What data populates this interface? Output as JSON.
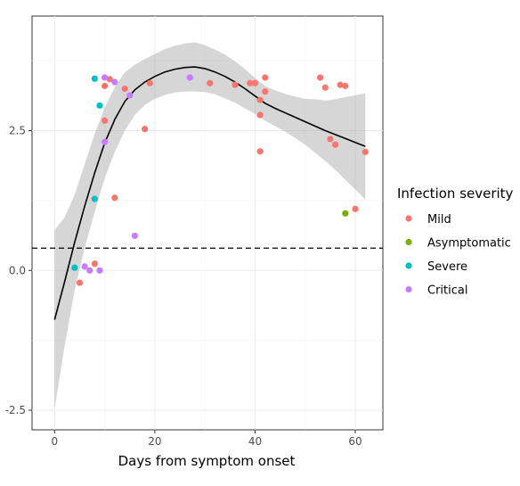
{
  "chart_data": {
    "type": "scatter",
    "title": "",
    "xlabel": "Days from symptom onset",
    "ylabel": "",
    "xlim": [
      -4.5,
      65.5
    ],
    "ylim": [
      -2.85,
      4.55
    ],
    "x_ticks": [
      0,
      20,
      40,
      60
    ],
    "y_ticks": [
      -2.5,
      0.0,
      2.5
    ],
    "x_tick_labels": [
      "0",
      "20",
      "40",
      "60"
    ],
    "y_tick_labels": [
      "-2.5",
      "0.0",
      "2.5"
    ],
    "grid": true,
    "legend_title": "Infection severity",
    "legend_position": "right",
    "reference_line": {
      "y": 0.4,
      "style": "dashed"
    },
    "series": [
      {
        "name": "Mild",
        "color": "#F8766D",
        "points": [
          [
            5,
            -0.22
          ],
          [
            8,
            0.12
          ],
          [
            12,
            1.3
          ],
          [
            10,
            2.68
          ],
          [
            10,
            3.3
          ],
          [
            11,
            3.42
          ],
          [
            14,
            3.25
          ],
          [
            18,
            2.53
          ],
          [
            19,
            3.35
          ],
          [
            31,
            3.35
          ],
          [
            36,
            3.32
          ],
          [
            39,
            3.35
          ],
          [
            40,
            3.35
          ],
          [
            41,
            3.05
          ],
          [
            41,
            2.78
          ],
          [
            41,
            2.13
          ],
          [
            42,
            3.45
          ],
          [
            42,
            3.2
          ],
          [
            53,
            3.45
          ],
          [
            54,
            3.27
          ],
          [
            55,
            2.35
          ],
          [
            56,
            2.25
          ],
          [
            57,
            3.32
          ],
          [
            58,
            3.3
          ],
          [
            60,
            1.1
          ],
          [
            62,
            2.12
          ]
        ]
      },
      {
        "name": "Asymptomatic",
        "color": "#7CAE00",
        "points": [
          [
            58,
            1.02
          ]
        ]
      },
      {
        "name": "Severe",
        "color": "#00BFC4",
        "points": [
          [
            4,
            0.05
          ],
          [
            8,
            1.28
          ],
          [
            8,
            3.43
          ],
          [
            9,
            2.95
          ]
        ]
      },
      {
        "name": "Critical",
        "color": "#C77CFF",
        "points": [
          [
            6,
            0.07
          ],
          [
            7,
            0.0
          ],
          [
            9,
            0.0
          ],
          [
            10,
            2.3
          ],
          [
            10,
            3.45
          ],
          [
            12,
            3.37
          ],
          [
            15,
            3.13
          ],
          [
            16,
            0.62
          ],
          [
            27,
            3.45
          ]
        ]
      }
    ],
    "smooth": {
      "color": "#000000",
      "band_color": "#999999",
      "x": [
        0,
        2,
        4,
        6,
        8,
        10,
        12,
        14,
        16,
        18,
        20,
        22,
        24,
        26,
        28,
        30,
        32,
        34,
        36,
        38,
        40,
        42,
        44,
        46,
        48,
        50,
        52,
        54,
        56,
        58,
        60,
        62
      ],
      "y": [
        -0.88,
        -0.2,
        0.5,
        1.15,
        1.75,
        2.28,
        2.7,
        3.02,
        3.23,
        3.37,
        3.47,
        3.55,
        3.6,
        3.63,
        3.64,
        3.61,
        3.55,
        3.47,
        3.37,
        3.25,
        3.12,
        2.99,
        2.9,
        2.82,
        2.74,
        2.66,
        2.58,
        2.5,
        2.43,
        2.36,
        2.29,
        2.22
      ],
      "lower": [
        -2.48,
        -1.35,
        -0.35,
        0.4,
        1.05,
        1.65,
        2.12,
        2.5,
        2.78,
        2.96,
        3.07,
        3.14,
        3.18,
        3.2,
        3.2,
        3.19,
        3.15,
        3.08,
        3.0,
        2.9,
        2.8,
        2.68,
        2.58,
        2.48,
        2.37,
        2.25,
        2.1,
        1.96,
        1.8,
        1.62,
        1.45,
        1.27
      ],
      "upper": [
        0.72,
        0.95,
        1.35,
        1.9,
        2.45,
        2.91,
        3.28,
        3.54,
        3.68,
        3.78,
        3.87,
        3.96,
        4.02,
        4.06,
        4.08,
        4.03,
        3.95,
        3.86,
        3.74,
        3.6,
        3.44,
        3.3,
        3.22,
        3.16,
        3.11,
        3.07,
        3.06,
        3.04,
        3.06,
        3.1,
        3.13,
        3.17
      ]
    }
  }
}
